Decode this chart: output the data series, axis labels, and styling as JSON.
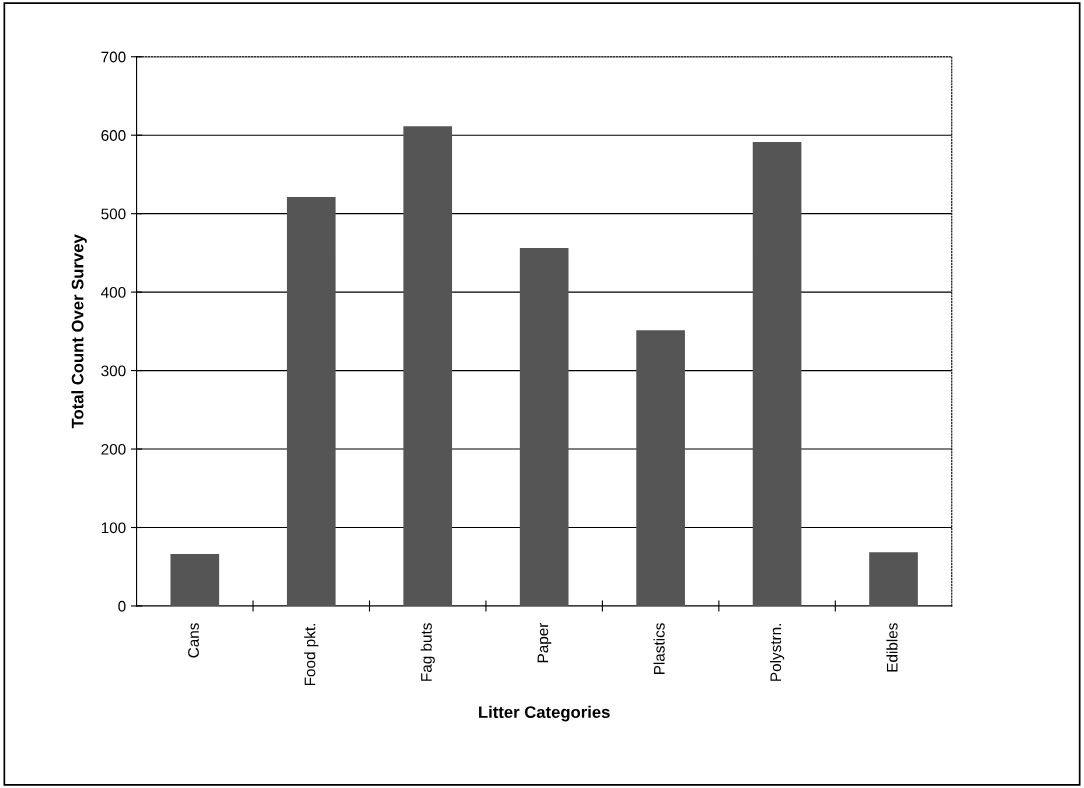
{
  "chart_data": {
    "type": "bar",
    "xlabel": "Litter Categories",
    "ylabel": "Total Count Over Survey",
    "categories": [
      "Cans",
      "Food pkt.",
      "Fag buts",
      "Paper",
      "Plastics",
      "Polystrn.",
      "Edibles"
    ],
    "values": [
      65,
      520,
      610,
      455,
      350,
      590,
      67
    ],
    "color": "#555555",
    "ylim": [
      0,
      700
    ],
    "yticks": [
      0,
      100,
      200,
      300,
      400,
      500,
      600,
      700
    ],
    "grid": "y",
    "legend": false
  }
}
